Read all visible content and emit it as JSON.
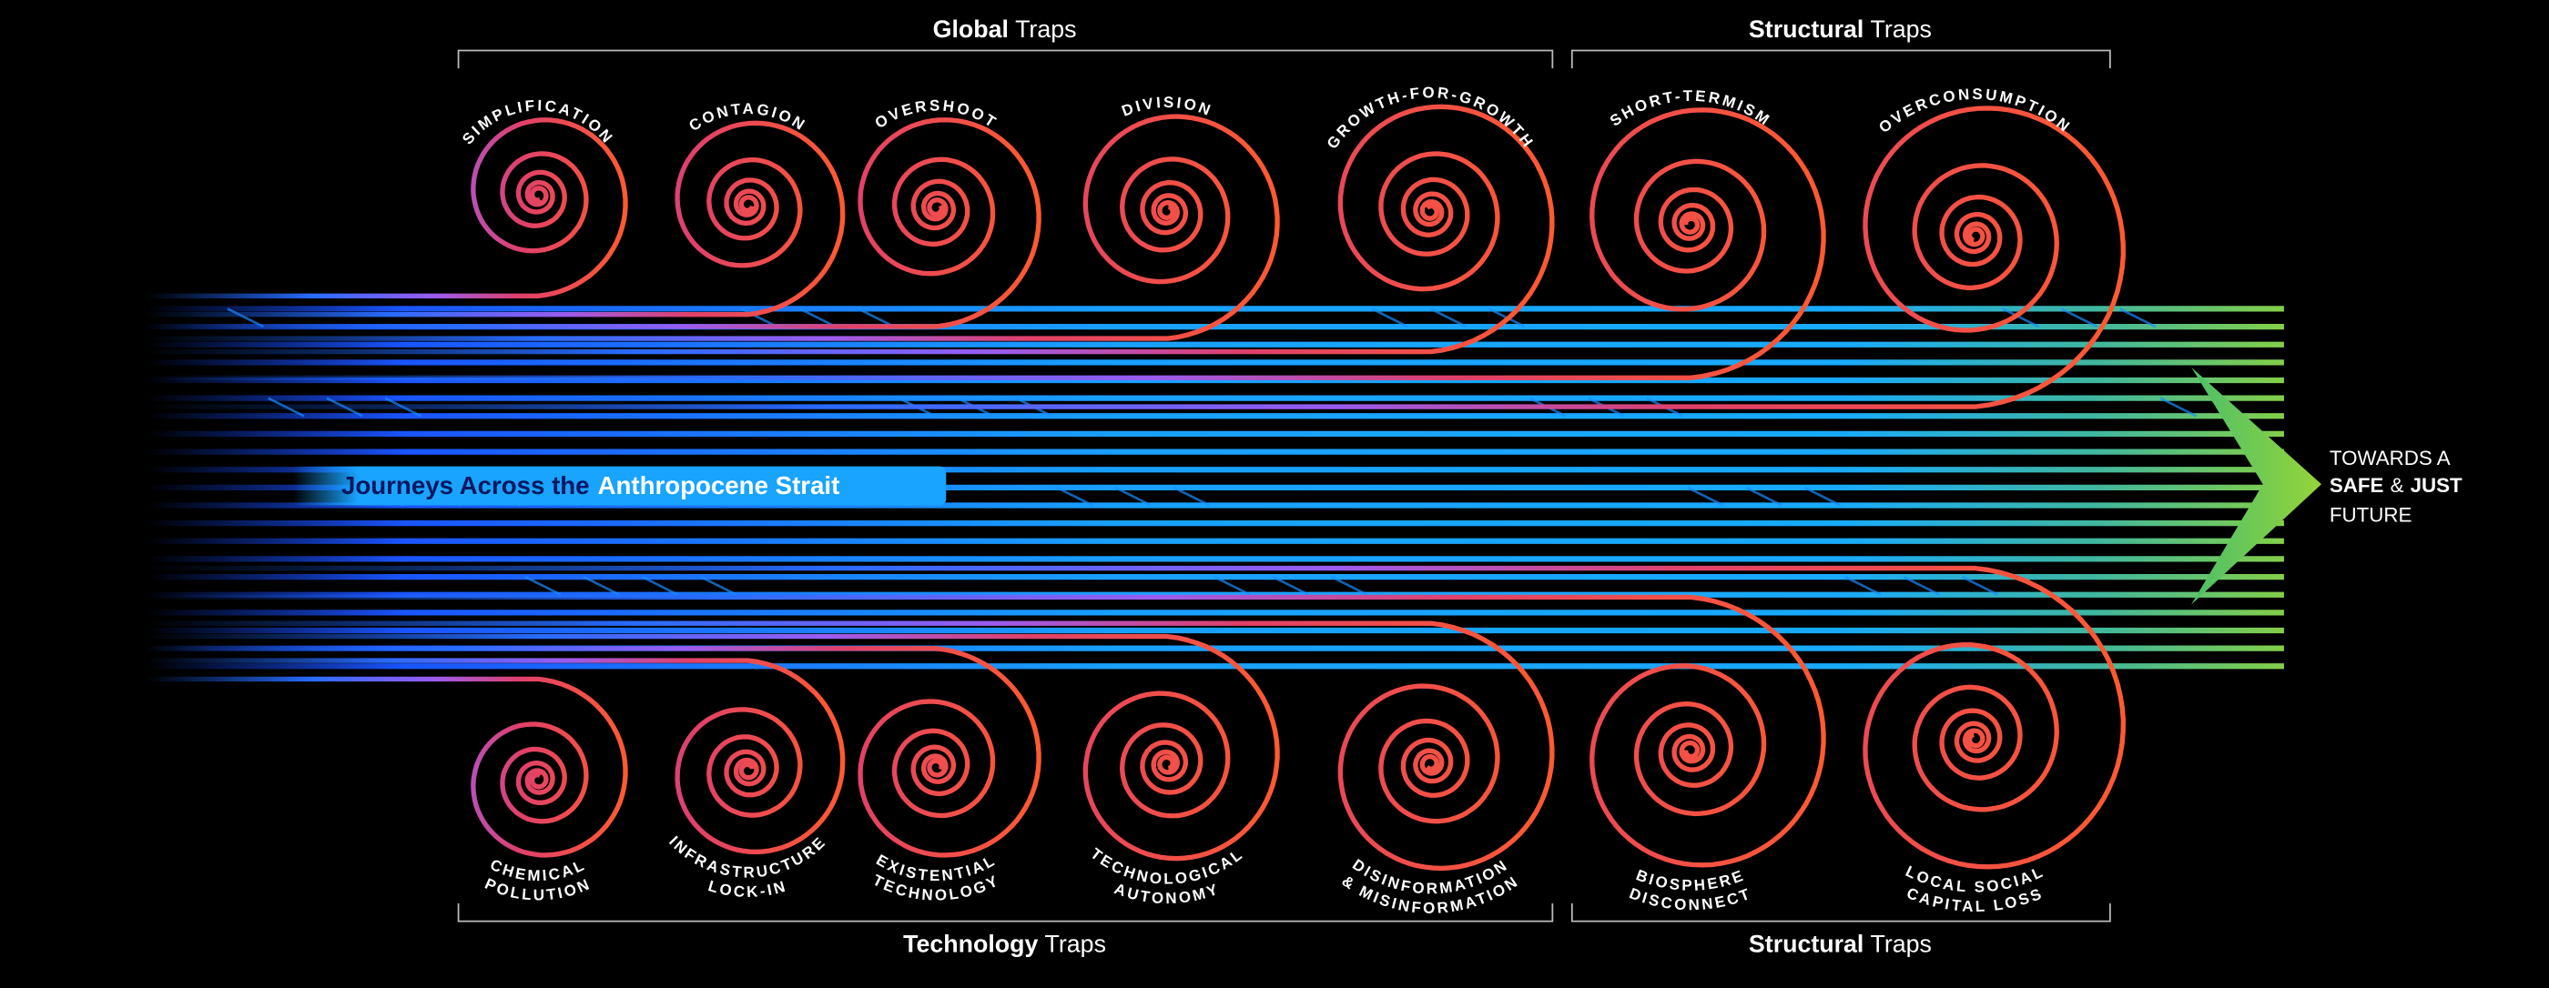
{
  "top_groups": [
    {
      "bold": "Global",
      "rest": "Traps"
    },
    {
      "bold": "Structural",
      "rest": "Traps"
    }
  ],
  "bottom_groups": [
    {
      "bold": "Technology",
      "rest": "Traps"
    },
    {
      "bold": "Structural",
      "rest": "Traps"
    }
  ],
  "top_traps": [
    "SIMPLIFICATION",
    "CONTAGION",
    "OVERSHOOT",
    "DIVISION",
    "GROWTH-FOR-GROWTH",
    "SHORT-TERMISM",
    "OVERCONSUMPTION"
  ],
  "bottom_traps": [
    [
      "CHEMICAL",
      "POLLUTION"
    ],
    [
      "INFRASTRUCTURE",
      "LOCK-IN"
    ],
    [
      "EXISTENTIAL",
      "TECHNOLOGY"
    ],
    [
      "TECHNOLOGICAL",
      "AUTONOMY"
    ],
    [
      "DISINFORMATION",
      "& MISINFORMATION"
    ],
    [
      "BIOSPHERE",
      "DISCONNECT"
    ],
    [
      "LOCAL SOCIAL",
      "CAPITAL LOSS"
    ]
  ],
  "title": {
    "dark": "Journeys Across the",
    "light": "Anthropocene Strait"
  },
  "destination": {
    "line1": "TOWARDS A",
    "bold1": "SAFE",
    "amp": "&",
    "bold2": "JUST",
    "line3": "FUTURE"
  }
}
